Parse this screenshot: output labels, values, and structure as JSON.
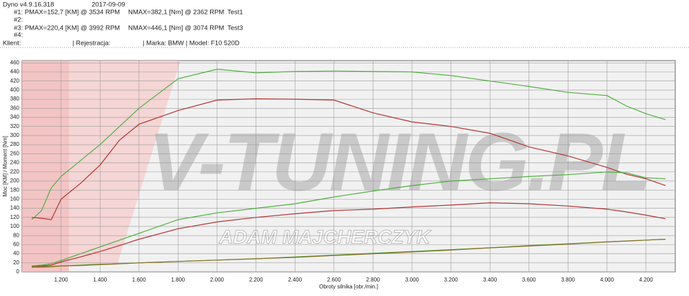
{
  "header": {
    "version": "Dyno v4.9.16.318",
    "date": "2017-09-09",
    "tests": [
      {
        "pmax": "#1: PMAX=152,7 [KM] @ 3534 RPM",
        "nmax": "NMAX=382,1 [Nm] @ 2362 RPM",
        "name": "Test1"
      },
      {
        "pmax": "#2:"
      },
      {
        "pmax": "#3: PMAX=220,4 [KM] @ 3992 RPM",
        "nmax": "NMAX=446,1 [Nm] @ 3074 RPM",
        "name": "Test3"
      },
      {
        "pmax": "#4:"
      }
    ],
    "client": "Klient:",
    "registration": "| Rejestracja:",
    "vehicle": "| Marka: BMW | Model: F10 520D"
  },
  "chart_data": {
    "type": "line",
    "watermark": "V-TUNING.PL",
    "watermark_sub": "ADAM MAJCHERCZYK",
    "x_label": "Obroty silnika [obr./min.]",
    "y_label": "Moc [KM] / Moment [Nm]",
    "x": [
      1050,
      1100,
      1150,
      1200,
      1300,
      1400,
      1500,
      1600,
      1800,
      2000,
      2200,
      2400,
      2600,
      2800,
      3000,
      3200,
      3400,
      3600,
      3800,
      4000,
      4100,
      4200,
      4300
    ],
    "series": [
      {
        "color": "#4caf3c",
        "values": [
          115,
          135,
          185,
          210,
          245,
          280,
          320,
          360,
          425,
          446,
          438,
          441,
          442,
          441,
          440,
          432,
          420,
          408,
          395,
          388,
          365,
          348,
          335
        ]
      },
      {
        "color": "#b53030",
        "values": [
          120,
          118,
          115,
          160,
          195,
          235,
          290,
          325,
          355,
          378,
          381,
          380,
          378,
          350,
          330,
          320,
          305,
          275,
          255,
          230,
          215,
          205,
          190
        ]
      },
      {
        "color": "#4caf3c",
        "values": [
          13,
          15,
          18,
          25,
          40,
          55,
          70,
          85,
          115,
          130,
          140,
          150,
          165,
          178,
          190,
          200,
          205,
          210,
          214,
          220,
          218,
          207,
          205
        ]
      },
      {
        "color": "#b53030",
        "values": [
          12,
          13,
          15,
          22,
          33,
          45,
          58,
          72,
          95,
          110,
          120,
          128,
          135,
          138,
          143,
          147,
          152,
          150,
          145,
          138,
          132,
          125,
          117
        ]
      },
      {
        "color": "#4caf3c",
        "values": [
          10,
          10,
          11,
          13,
          15,
          17,
          18,
          20,
          23,
          26,
          29,
          33,
          37,
          41,
          45,
          49,
          53,
          58,
          62,
          66,
          68,
          70,
          72
        ]
      },
      {
        "color": "#8a6a20",
        "values": [
          12,
          12,
          12,
          13,
          14,
          16,
          18,
          20,
          23,
          26,
          29,
          32,
          36,
          40,
          44,
          48,
          53,
          57,
          61,
          66,
          68,
          70,
          72
        ]
      }
    ],
    "xlim": [
      1000,
      4350
    ],
    "ylim": [
      0,
      465
    ],
    "xticks": [
      {
        "value": 1200,
        "label": "1.200"
      },
      {
        "value": 1400,
        "label": "1.400"
      },
      {
        "value": 1600,
        "label": "1.600"
      },
      {
        "value": 1800,
        "label": "1.800"
      },
      {
        "value": 2000,
        "label": "2.000"
      },
      {
        "value": 2200,
        "label": "2.200"
      },
      {
        "value": 2400,
        "label": "2.400"
      },
      {
        "value": 2600,
        "label": "2.600"
      },
      {
        "value": 2800,
        "label": "2.800"
      },
      {
        "value": 3000,
        "label": "3.000"
      },
      {
        "value": 3200,
        "label": "3.200"
      },
      {
        "value": 3400,
        "label": "3.400"
      },
      {
        "value": 3600,
        "label": "3.600"
      },
      {
        "value": 3800,
        "label": "3.800"
      },
      {
        "value": 4000,
        "label": "4.000"
      },
      {
        "value": 4200,
        "label": "4.200"
      }
    ],
    "yticks": [
      0,
      20,
      40,
      60,
      80,
      100,
      120,
      140,
      160,
      180,
      200,
      220,
      240,
      260,
      280,
      300,
      320,
      340,
      360,
      380,
      400,
      420,
      440,
      460
    ],
    "grid": true
  }
}
